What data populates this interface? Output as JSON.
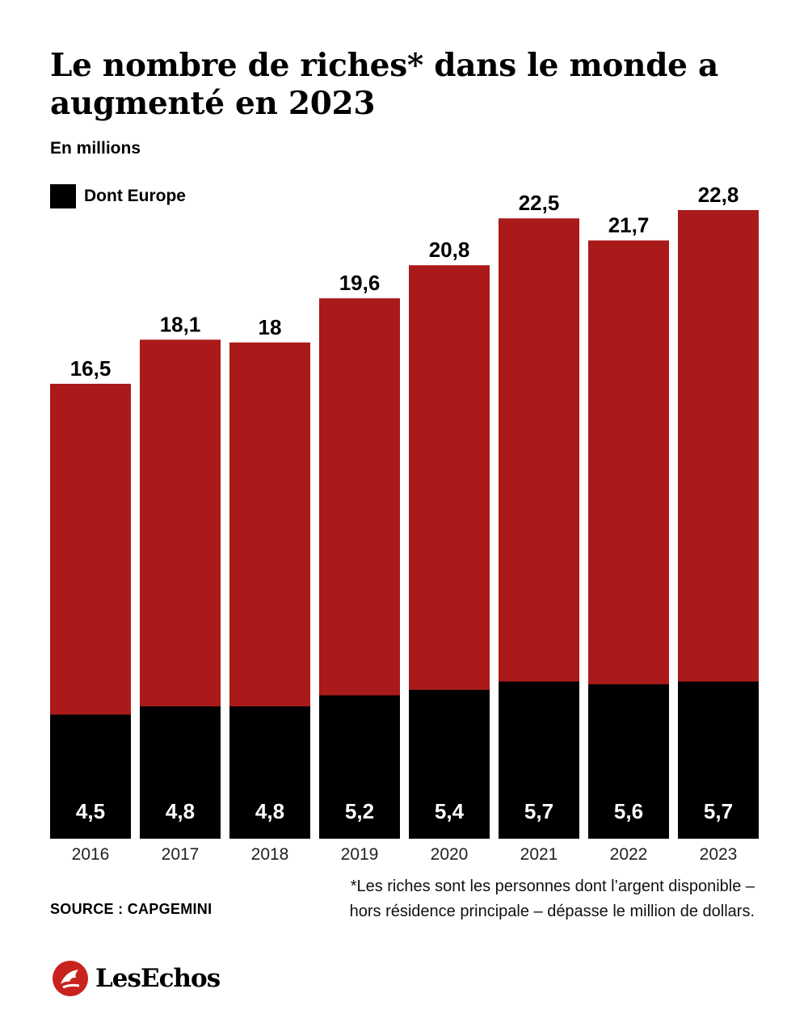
{
  "header": {
    "title": "Le nombre de riches* dans le monde a augmenté en 2023",
    "subtitle": "En millions"
  },
  "legend": {
    "label": "Dont Europe"
  },
  "colors": {
    "total": "#ab1a1a",
    "europe": "#000000"
  },
  "chart_data": {
    "type": "bar",
    "stacked": false,
    "categories": [
      "2016",
      "2017",
      "2018",
      "2019",
      "2020",
      "2021",
      "2022",
      "2023"
    ],
    "series": [
      {
        "values": [
          16.5,
          18.1,
          18,
          19.6,
          20.8,
          22.5,
          21.7,
          22.8
        ],
        "labels": [
          "16,5",
          "18,1",
          "18",
          "19,6",
          "20,8",
          "22,5",
          "21,7",
          "22,8"
        ]
      },
      {
        "name": "Dont Europe",
        "values": [
          4.5,
          4.8,
          4.8,
          5.2,
          5.4,
          5.7,
          5.6,
          5.7
        ],
        "labels": [
          "4,5",
          "4,8",
          "4,8",
          "5,2",
          "5,4",
          "5,7",
          "5,6",
          "5,7"
        ]
      }
    ],
    "ylim": [
      0,
      22.8
    ],
    "legend_position": "top-left",
    "grid": false
  },
  "footer": {
    "source": "SOURCE : CAPGEMINI",
    "footnote_line1": "*Les riches sont les personnes dont l’argent disponible –",
    "footnote_line2": "hors résidence principale – dépasse le million de dollars.",
    "logo_text": "LesEchos"
  }
}
